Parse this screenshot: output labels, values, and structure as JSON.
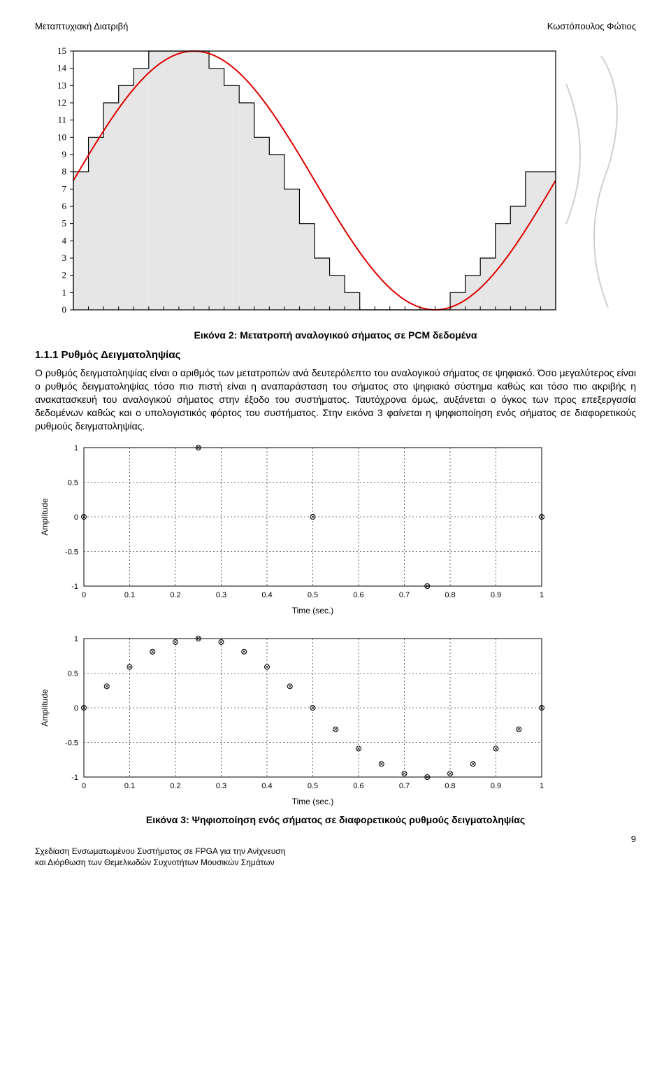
{
  "header": {
    "left": "Μεταπτυχιακή Διατριβή",
    "right": "Κωστόπουλος Φώτιος"
  },
  "fig2": {
    "caption": "Εικόνα 2: Μετατροπή αναλογικού σήματος σε PCM δεδομένα",
    "y_ticks": [
      0,
      1,
      2,
      3,
      4,
      5,
      6,
      7,
      8,
      9,
      10,
      11,
      12,
      13,
      14,
      15
    ],
    "ylim": [
      0,
      15
    ],
    "n_bars": 32,
    "bar_fill": "#e6e6e6",
    "bar_stroke": "#000000",
    "sine_color": "#e00000",
    "sine_width": 2,
    "bg": "#ffffff",
    "bar_values": [
      8,
      10,
      12,
      13,
      14,
      15,
      15,
      15,
      15,
      14,
      13,
      12,
      10,
      9,
      7,
      5,
      3,
      2,
      1,
      0,
      0,
      0,
      0,
      0,
      0,
      1,
      2,
      3,
      5,
      6,
      8,
      8
    ],
    "sine_offset": 7.5,
    "sine_amp": 7.5
  },
  "section": {
    "heading": "1.1.1  Ρυθμός Δειγματοληψίας",
    "para": "Ο ρυθμός δειγματοληψίας είναι ο αριθμός των μετατροπών ανά δευτερόλεπτο του αναλογικού σήματος σε ψηφιακό. Όσο μεγαλύτερος είναι ο ρυθμός δειγματοληψίας τόσο πιο πιστή είναι η αναπαράσταση του σήματος στο ψηφιακό σύστημα καθώς και τόσο πιο ακριβής η ανακατασκευή του αναλογικού σήματος στην έξοδο του συστήματος. Ταυτόχρονα όμως, αυξάνεται ο όγκος των προς επεξεργασία δεδομένων καθώς και ο υπολογιστικός φόρτος του συστήματος. Στην εικόνα 3 φαίνεται η ψηφιοποίηση ενός σήματος σε διαφορετικούς ρυθμούς δειγματοληψίας."
  },
  "scatter": {
    "xlabel": "Time (sec.)",
    "ylabel": "Amplitude",
    "xlim": [
      0,
      1
    ],
    "ylim": [
      -1,
      1
    ],
    "xtick_step": 0.1,
    "ytick_step": 0.5,
    "xticks": [
      0,
      0.1,
      0.2,
      0.3,
      0.4,
      0.5,
      0.6,
      0.7,
      0.8,
      0.9,
      1
    ],
    "yticks": [
      -1,
      -0.5,
      0,
      0.5,
      1
    ],
    "grid_color": "#000000",
    "grid_dash": "2,3",
    "marker_stroke": "#000000",
    "marker_fill": "#ffffff",
    "marker_radius": 3.5,
    "label_fontsize": 12,
    "tick_fontsize": 11,
    "top_x": [
      0.0,
      0.25,
      0.5,
      0.75,
      1.0
    ],
    "top_y": [
      0.0,
      1.0,
      0.0,
      -1.0,
      0.0
    ],
    "bot_x": [
      0.0,
      0.05,
      0.1,
      0.15,
      0.2,
      0.25,
      0.3,
      0.35,
      0.4,
      0.45,
      0.5,
      0.55,
      0.6,
      0.65,
      0.7,
      0.75,
      0.8,
      0.85,
      0.9,
      0.95,
      1.0
    ],
    "bot_y": [
      0.0,
      0.31,
      0.59,
      0.81,
      0.95,
      1.0,
      0.95,
      0.81,
      0.59,
      0.31,
      0.0,
      -0.31,
      -0.59,
      -0.81,
      -0.95,
      -1.0,
      -0.95,
      -0.81,
      -0.59,
      -0.31,
      0.0
    ]
  },
  "fig3": {
    "caption": "Εικόνα 3: Ψηφιοποίηση ενός σήματος σε διαφορετικούς ρυθμούς δειγματοληψίας"
  },
  "footer": {
    "line1": "Σχεδίαση Ενσωματωμένου Συστήματος σε FPGA για την Ανίχνευση",
    "line2": "και Διόρθωση των Θεμελιωδών Συχνοτήτων Μουσικών Σημάτων",
    "page": "9"
  },
  "watermark": {
    "stroke": "#cfcfcf"
  }
}
